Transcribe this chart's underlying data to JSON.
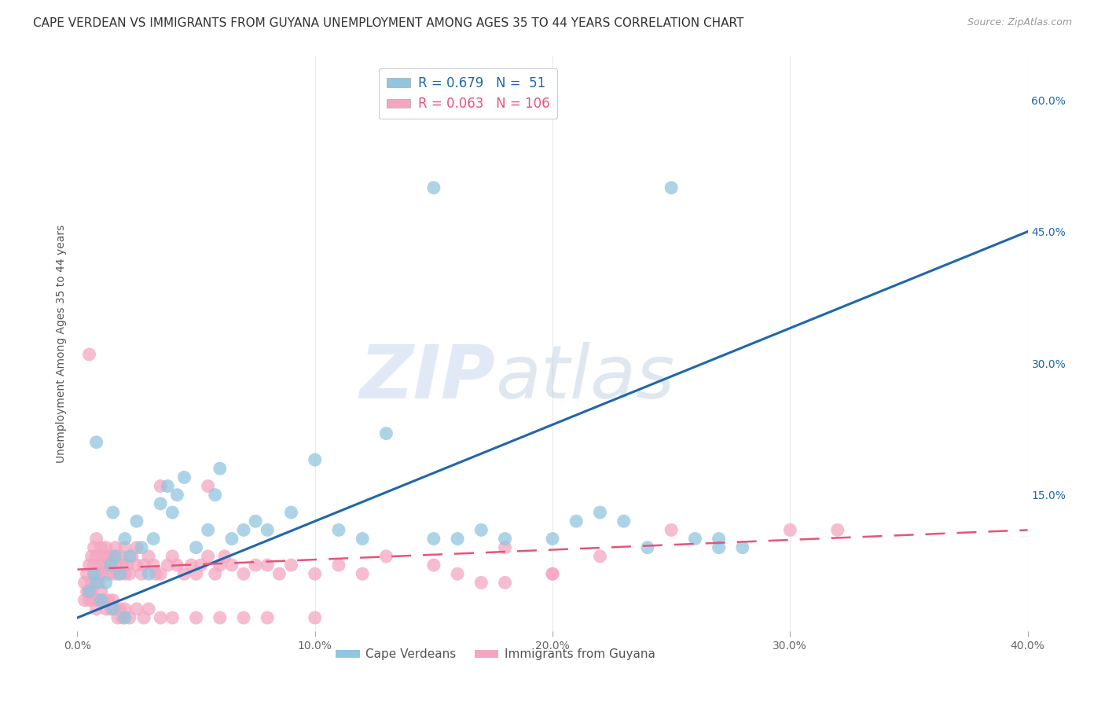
{
  "title": "CAPE VERDEAN VS IMMIGRANTS FROM GUYANA UNEMPLOYMENT AMONG AGES 35 TO 44 YEARS CORRELATION CHART",
  "source": "Source: ZipAtlas.com",
  "ylabel": "Unemployment Among Ages 35 to 44 years",
  "xlim": [
    0,
    0.4
  ],
  "ylim": [
    -0.005,
    0.65
  ],
  "xticks": [
    0.0,
    0.1,
    0.2,
    0.3,
    0.4
  ],
  "xticklabels": [
    "0.0%",
    "10.0%",
    "20.0%",
    "30.0%",
    "40.0%"
  ],
  "yticks_right": [
    0.15,
    0.3,
    0.45,
    0.6
  ],
  "yticklabels_right": [
    "15.0%",
    "30.0%",
    "45.0%",
    "60.0%"
  ],
  "blue_R": 0.679,
  "blue_N": 51,
  "pink_R": 0.063,
  "pink_N": 106,
  "blue_color": "#92c5de",
  "pink_color": "#f4a6c0",
  "blue_line_color": "#2166ac",
  "pink_line_color": "#e8537a",
  "watermark_zip": "ZIP",
  "watermark_atlas": "atlas",
  "legend_label_blue": "Cape Verdeans",
  "legend_label_pink": "Immigrants from Guyana",
  "blue_scatter_x": [
    0.005,
    0.007,
    0.008,
    0.01,
    0.012,
    0.014,
    0.015,
    0.016,
    0.018,
    0.02,
    0.022,
    0.025,
    0.027,
    0.03,
    0.032,
    0.035,
    0.038,
    0.04,
    0.042,
    0.045,
    0.05,
    0.055,
    0.058,
    0.06,
    0.065,
    0.07,
    0.075,
    0.08,
    0.09,
    0.1,
    0.11,
    0.12,
    0.13,
    0.15,
    0.16,
    0.17,
    0.18,
    0.2,
    0.21,
    0.22,
    0.23,
    0.24,
    0.25,
    0.26,
    0.27,
    0.28,
    0.008,
    0.015,
    0.02,
    0.15,
    0.27
  ],
  "blue_scatter_y": [
    0.04,
    0.06,
    0.05,
    0.03,
    0.05,
    0.07,
    0.13,
    0.08,
    0.06,
    0.1,
    0.08,
    0.12,
    0.09,
    0.06,
    0.1,
    0.14,
    0.16,
    0.13,
    0.15,
    0.17,
    0.09,
    0.11,
    0.15,
    0.18,
    0.1,
    0.11,
    0.12,
    0.11,
    0.13,
    0.19,
    0.11,
    0.1,
    0.22,
    0.1,
    0.1,
    0.11,
    0.1,
    0.1,
    0.12,
    0.13,
    0.12,
    0.09,
    0.5,
    0.1,
    0.1,
    0.09,
    0.21,
    0.02,
    0.01,
    0.5,
    0.09
  ],
  "pink_scatter_x": [
    0.003,
    0.004,
    0.005,
    0.005,
    0.006,
    0.006,
    0.007,
    0.007,
    0.007,
    0.008,
    0.008,
    0.009,
    0.009,
    0.01,
    0.01,
    0.01,
    0.011,
    0.012,
    0.012,
    0.013,
    0.013,
    0.014,
    0.015,
    0.015,
    0.016,
    0.016,
    0.017,
    0.018,
    0.019,
    0.02,
    0.02,
    0.021,
    0.022,
    0.023,
    0.025,
    0.025,
    0.027,
    0.028,
    0.03,
    0.032,
    0.033,
    0.035,
    0.038,
    0.04,
    0.042,
    0.045,
    0.048,
    0.05,
    0.052,
    0.055,
    0.058,
    0.06,
    0.062,
    0.065,
    0.07,
    0.075,
    0.08,
    0.085,
    0.09,
    0.1,
    0.11,
    0.12,
    0.13,
    0.15,
    0.16,
    0.17,
    0.18,
    0.2,
    0.22,
    0.25,
    0.003,
    0.004,
    0.005,
    0.006,
    0.007,
    0.008,
    0.009,
    0.01,
    0.011,
    0.012,
    0.013,
    0.014,
    0.015,
    0.016,
    0.017,
    0.018,
    0.019,
    0.02,
    0.022,
    0.025,
    0.028,
    0.03,
    0.035,
    0.04,
    0.05,
    0.06,
    0.07,
    0.08,
    0.1,
    0.005,
    0.32,
    0.3,
    0.2,
    0.18,
    0.055,
    0.035
  ],
  "pink_scatter_y": [
    0.05,
    0.06,
    0.07,
    0.04,
    0.08,
    0.05,
    0.07,
    0.09,
    0.06,
    0.08,
    0.1,
    0.06,
    0.05,
    0.07,
    0.09,
    0.06,
    0.08,
    0.07,
    0.09,
    0.06,
    0.08,
    0.07,
    0.08,
    0.06,
    0.07,
    0.09,
    0.06,
    0.08,
    0.07,
    0.09,
    0.06,
    0.07,
    0.06,
    0.08,
    0.07,
    0.09,
    0.06,
    0.07,
    0.08,
    0.07,
    0.06,
    0.16,
    0.07,
    0.08,
    0.07,
    0.06,
    0.07,
    0.06,
    0.07,
    0.08,
    0.06,
    0.07,
    0.08,
    0.07,
    0.06,
    0.07,
    0.07,
    0.06,
    0.07,
    0.06,
    0.07,
    0.06,
    0.08,
    0.07,
    0.06,
    0.05,
    0.09,
    0.06,
    0.08,
    0.11,
    0.03,
    0.04,
    0.03,
    0.04,
    0.03,
    0.02,
    0.03,
    0.04,
    0.03,
    0.02,
    0.03,
    0.02,
    0.03,
    0.02,
    0.01,
    0.02,
    0.01,
    0.02,
    0.01,
    0.02,
    0.01,
    0.02,
    0.01,
    0.01,
    0.01,
    0.01,
    0.01,
    0.01,
    0.01,
    0.31,
    0.11,
    0.11,
    0.06,
    0.05,
    0.16,
    0.06
  ],
  "blue_trend_x": [
    0.0,
    0.4
  ],
  "blue_trend_y": [
    0.01,
    0.45
  ],
  "pink_trend_x": [
    0.0,
    0.4
  ],
  "pink_trend_y": [
    0.065,
    0.11
  ],
  "bg_color": "#ffffff",
  "grid_color": "#dddddd",
  "title_fontsize": 11,
  "axis_label_fontsize": 10,
  "tick_fontsize": 10
}
